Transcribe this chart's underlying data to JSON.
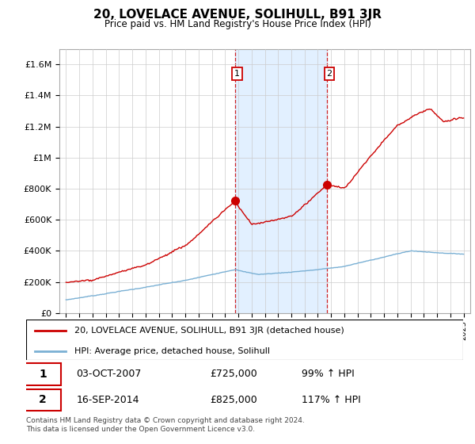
{
  "title": "20, LOVELACE AVENUE, SOLIHULL, B91 3JR",
  "subtitle": "Price paid vs. HM Land Registry's House Price Index (HPI)",
  "legend_line1": "20, LOVELACE AVENUE, SOLIHULL, B91 3JR (detached house)",
  "legend_line2": "HPI: Average price, detached house, Solihull",
  "sale1_label": "1",
  "sale1_date": "03-OCT-2007",
  "sale1_price": "£725,000",
  "sale1_hpi": "99% ↑ HPI",
  "sale2_label": "2",
  "sale2_date": "16-SEP-2014",
  "sale2_price": "£825,000",
  "sale2_hpi": "117% ↑ HPI",
  "footer": "Contains HM Land Registry data © Crown copyright and database right 2024.\nThis data is licensed under the Open Government Licence v3.0.",
  "red_color": "#cc0000",
  "blue_color": "#7ab0d4",
  "shade_color": "#ddeeff",
  "ylim_min": 0,
  "ylim_max": 1700000,
  "yticks": [
    0,
    200000,
    400000,
    600000,
    800000,
    1000000,
    1200000,
    1400000,
    1600000
  ],
  "ytick_labels": [
    "£0",
    "£200K",
    "£400K",
    "£600K",
    "£800K",
    "£1M",
    "£1.2M",
    "£1.4M",
    "£1.6M"
  ],
  "sale1_x": 2007.75,
  "sale1_y": 725000,
  "sale2_x": 2014.71,
  "sale2_y": 825000,
  "xmin": 1994.5,
  "xmax": 2025.5
}
